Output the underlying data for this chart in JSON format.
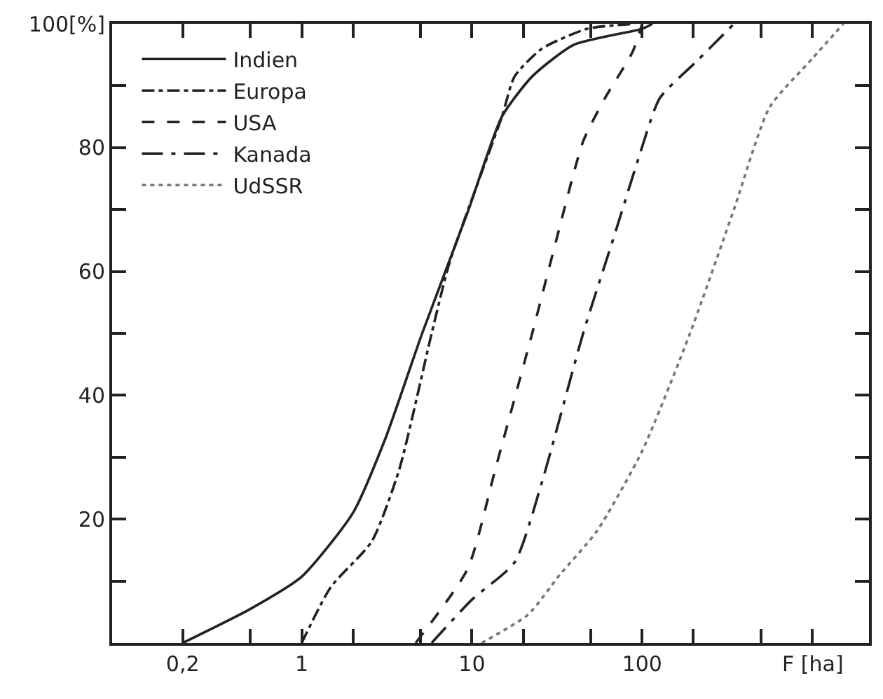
{
  "chart_data": {
    "type": "line",
    "xlabel": "F [ha]",
    "log": "x",
    "legend": "top left",
    "marker": "none",
    "xlim": [
      0.077,
      2150
    ],
    "ylim": [
      0,
      100
    ],
    "xticks": [
      {
        "value": 0.2,
        "label": "0,2"
      },
      {
        "value": 0.5,
        "label": null
      },
      1,
      {
        "value": 2,
        "label": null
      },
      {
        "value": 5,
        "label": null
      },
      10,
      {
        "value": 20,
        "label": null
      },
      {
        "value": 50,
        "label": null
      },
      100,
      {
        "value": 200,
        "label": null
      },
      {
        "value": 500,
        "label": null
      },
      {
        "value": 1000,
        "label": null
      }
    ],
    "yticks": [
      {
        "value": 10,
        "label": null
      },
      20,
      {
        "value": 30,
        "label": null
      },
      40,
      {
        "value": 50,
        "label": null
      },
      60,
      {
        "value": 70,
        "label": null
      },
      80,
      {
        "value": 90,
        "label": null
      },
      {
        "value": 100,
        "label": "100[%]"
      }
    ],
    "series": [
      {
        "name": "Indien",
        "color": "#222222",
        "line_style": "solid",
        "x": [
          0.2,
          0.5,
          1,
          2,
          3.1,
          5.1,
          9.45,
          15,
          22.6,
          39.6,
          100,
          115
        ],
        "values": [
          0,
          5.5,
          10.7,
          21,
          33,
          50,
          69.6,
          85,
          91.5,
          96.6,
          99.2,
          100
        ]
      },
      {
        "name": "Europa",
        "color": "#222222",
        "line_style": "dashdot",
        "x": [
          1,
          1.48,
          2.58,
          3.74,
          5.8,
          7.4,
          15,
          17.8,
          25.8,
          47.6,
          90
        ],
        "values": [
          0,
          9,
          16.4,
          28,
          50,
          61.5,
          85,
          91.5,
          96,
          99.2,
          100
        ]
      },
      {
        "name": "USA",
        "color": "#222222",
        "line_style": "dashed",
        "x": [
          4.67,
          9.45,
          13.7,
          22.6,
          31,
          45,
          60.5,
          88,
          100
        ],
        "values": [
          0,
          12,
          28,
          50,
          64.6,
          81,
          88,
          95.5,
          100
        ]
      },
      {
        "name": "Kanada",
        "color": "#222222",
        "line_style": "longdashdot",
        "x": [
          5.8,
          10,
          17.8,
          25.8,
          45,
          69,
          94.5,
          127,
          210,
          346
        ],
        "values": [
          0,
          7,
          13,
          26,
          50,
          66,
          78,
          88,
          94,
          100
        ]
      },
      {
        "name": "UdSSR",
        "color": "#777777",
        "line_style": "dotted",
        "x": [
          11.4,
          21.4,
          32.8,
          54,
          100,
          191,
          346,
          560,
          1000,
          1520
        ],
        "values": [
          0,
          4.6,
          11,
          18,
          31,
          50,
          70,
          86.5,
          94.4,
          100
        ]
      }
    ]
  }
}
